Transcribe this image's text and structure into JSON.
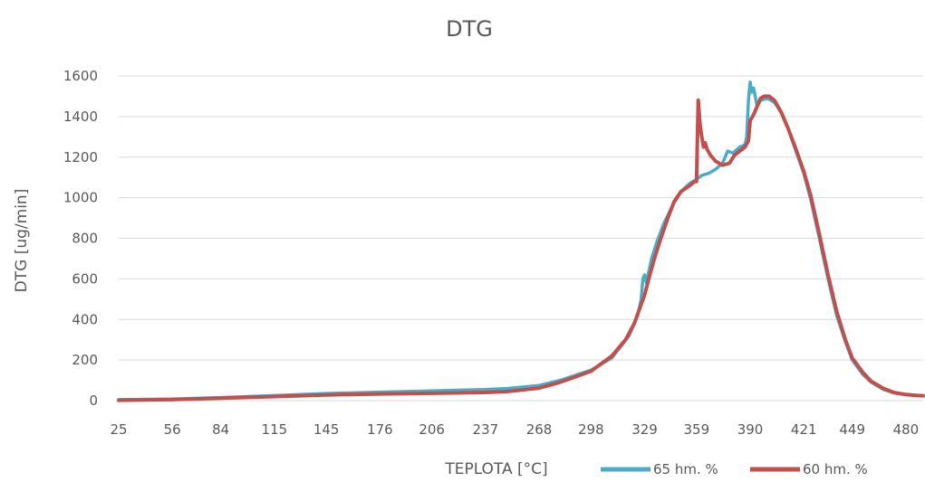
{
  "chart_data": {
    "type": "line",
    "title": "DTG",
    "xlabel": "TEPLOTA [°C]",
    "ylabel": "DTG [ug/min]",
    "ylim": [
      0,
      1600
    ],
    "xlim": [
      25,
      490
    ],
    "yticks": [
      0,
      200,
      400,
      600,
      800,
      1000,
      1200,
      1400,
      1600
    ],
    "xticks": [
      "25",
      "56",
      "84",
      "115",
      "145",
      "176",
      "206",
      "237",
      "268",
      "298",
      "329",
      "359",
      "390",
      "421",
      "449",
      "480"
    ],
    "xtick_values": [
      25,
      56,
      84,
      115,
      145,
      176,
      206,
      237,
      268,
      298,
      329,
      359,
      390,
      421,
      449,
      480
    ],
    "grid": true,
    "legend_position": "bottom-right",
    "series": [
      {
        "name": "65 hm. %",
        "color": "#4bacc6",
        "points": [
          [
            25,
            5
          ],
          [
            56,
            8
          ],
          [
            84,
            15
          ],
          [
            115,
            25
          ],
          [
            145,
            35
          ],
          [
            176,
            42
          ],
          [
            206,
            48
          ],
          [
            237,
            55
          ],
          [
            250,
            60
          ],
          [
            268,
            75
          ],
          [
            280,
            100
          ],
          [
            298,
            150
          ],
          [
            310,
            210
          ],
          [
            320,
            320
          ],
          [
            325,
            420
          ],
          [
            327,
            500
          ],
          [
            328,
            600
          ],
          [
            329,
            620
          ],
          [
            330,
            580
          ],
          [
            333,
            700
          ],
          [
            336,
            780
          ],
          [
            340,
            870
          ],
          [
            345,
            960
          ],
          [
            350,
            1030
          ],
          [
            355,
            1070
          ],
          [
            359,
            1090
          ],
          [
            362,
            1110
          ],
          [
            366,
            1120
          ],
          [
            370,
            1140
          ],
          [
            374,
            1170
          ],
          [
            377,
            1230
          ],
          [
            380,
            1220
          ],
          [
            384,
            1250
          ],
          [
            387,
            1260
          ],
          [
            388,
            1300
          ],
          [
            389,
            1480
          ],
          [
            390,
            1570
          ],
          [
            391,
            1520
          ],
          [
            392,
            1540
          ],
          [
            394,
            1450
          ],
          [
            396,
            1480
          ],
          [
            400,
            1490
          ],
          [
            404,
            1470
          ],
          [
            408,
            1420
          ],
          [
            412,
            1340
          ],
          [
            416,
            1240
          ],
          [
            421,
            1120
          ],
          [
            425,
            990
          ],
          [
            430,
            800
          ],
          [
            435,
            600
          ],
          [
            440,
            420
          ],
          [
            445,
            290
          ],
          [
            449,
            200
          ],
          [
            455,
            130
          ],
          [
            460,
            90
          ],
          [
            467,
            55
          ],
          [
            473,
            38
          ],
          [
            480,
            30
          ],
          [
            486,
            25
          ],
          [
            490,
            23
          ]
        ]
      },
      {
        "name": "60 hm. %",
        "color": "#c0504d",
        "points": [
          [
            25,
            2
          ],
          [
            56,
            5
          ],
          [
            84,
            12
          ],
          [
            115,
            20
          ],
          [
            145,
            28
          ],
          [
            176,
            33
          ],
          [
            206,
            36
          ],
          [
            237,
            40
          ],
          [
            250,
            45
          ],
          [
            268,
            62
          ],
          [
            280,
            90
          ],
          [
            298,
            145
          ],
          [
            310,
            220
          ],
          [
            318,
            300
          ],
          [
            323,
            380
          ],
          [
            329,
            520
          ],
          [
            332,
            620
          ],
          [
            335,
            710
          ],
          [
            338,
            790
          ],
          [
            342,
            890
          ],
          [
            346,
            980
          ],
          [
            350,
            1030
          ],
          [
            355,
            1060
          ],
          [
            358,
            1080
          ],
          [
            359,
            1080
          ],
          [
            360,
            1480
          ],
          [
            361,
            1360
          ],
          [
            362,
            1300
          ],
          [
            363,
            1250
          ],
          [
            364,
            1270
          ],
          [
            365,
            1240
          ],
          [
            367,
            1210
          ],
          [
            370,
            1180
          ],
          [
            374,
            1160
          ],
          [
            378,
            1170
          ],
          [
            381,
            1210
          ],
          [
            384,
            1230
          ],
          [
            387,
            1250
          ],
          [
            389,
            1280
          ],
          [
            390,
            1380
          ],
          [
            392,
            1410
          ],
          [
            394,
            1450
          ],
          [
            396,
            1490
          ],
          [
            398,
            1500
          ],
          [
            401,
            1500
          ],
          [
            404,
            1480
          ],
          [
            408,
            1420
          ],
          [
            412,
            1340
          ],
          [
            416,
            1250
          ],
          [
            421,
            1130
          ],
          [
            425,
            1010
          ],
          [
            430,
            820
          ],
          [
            435,
            620
          ],
          [
            440,
            440
          ],
          [
            445,
            300
          ],
          [
            449,
            210
          ],
          [
            455,
            140
          ],
          [
            460,
            95
          ],
          [
            467,
            60
          ],
          [
            473,
            40
          ],
          [
            480,
            30
          ],
          [
            486,
            26
          ],
          [
            490,
            24
          ]
        ]
      }
    ]
  }
}
